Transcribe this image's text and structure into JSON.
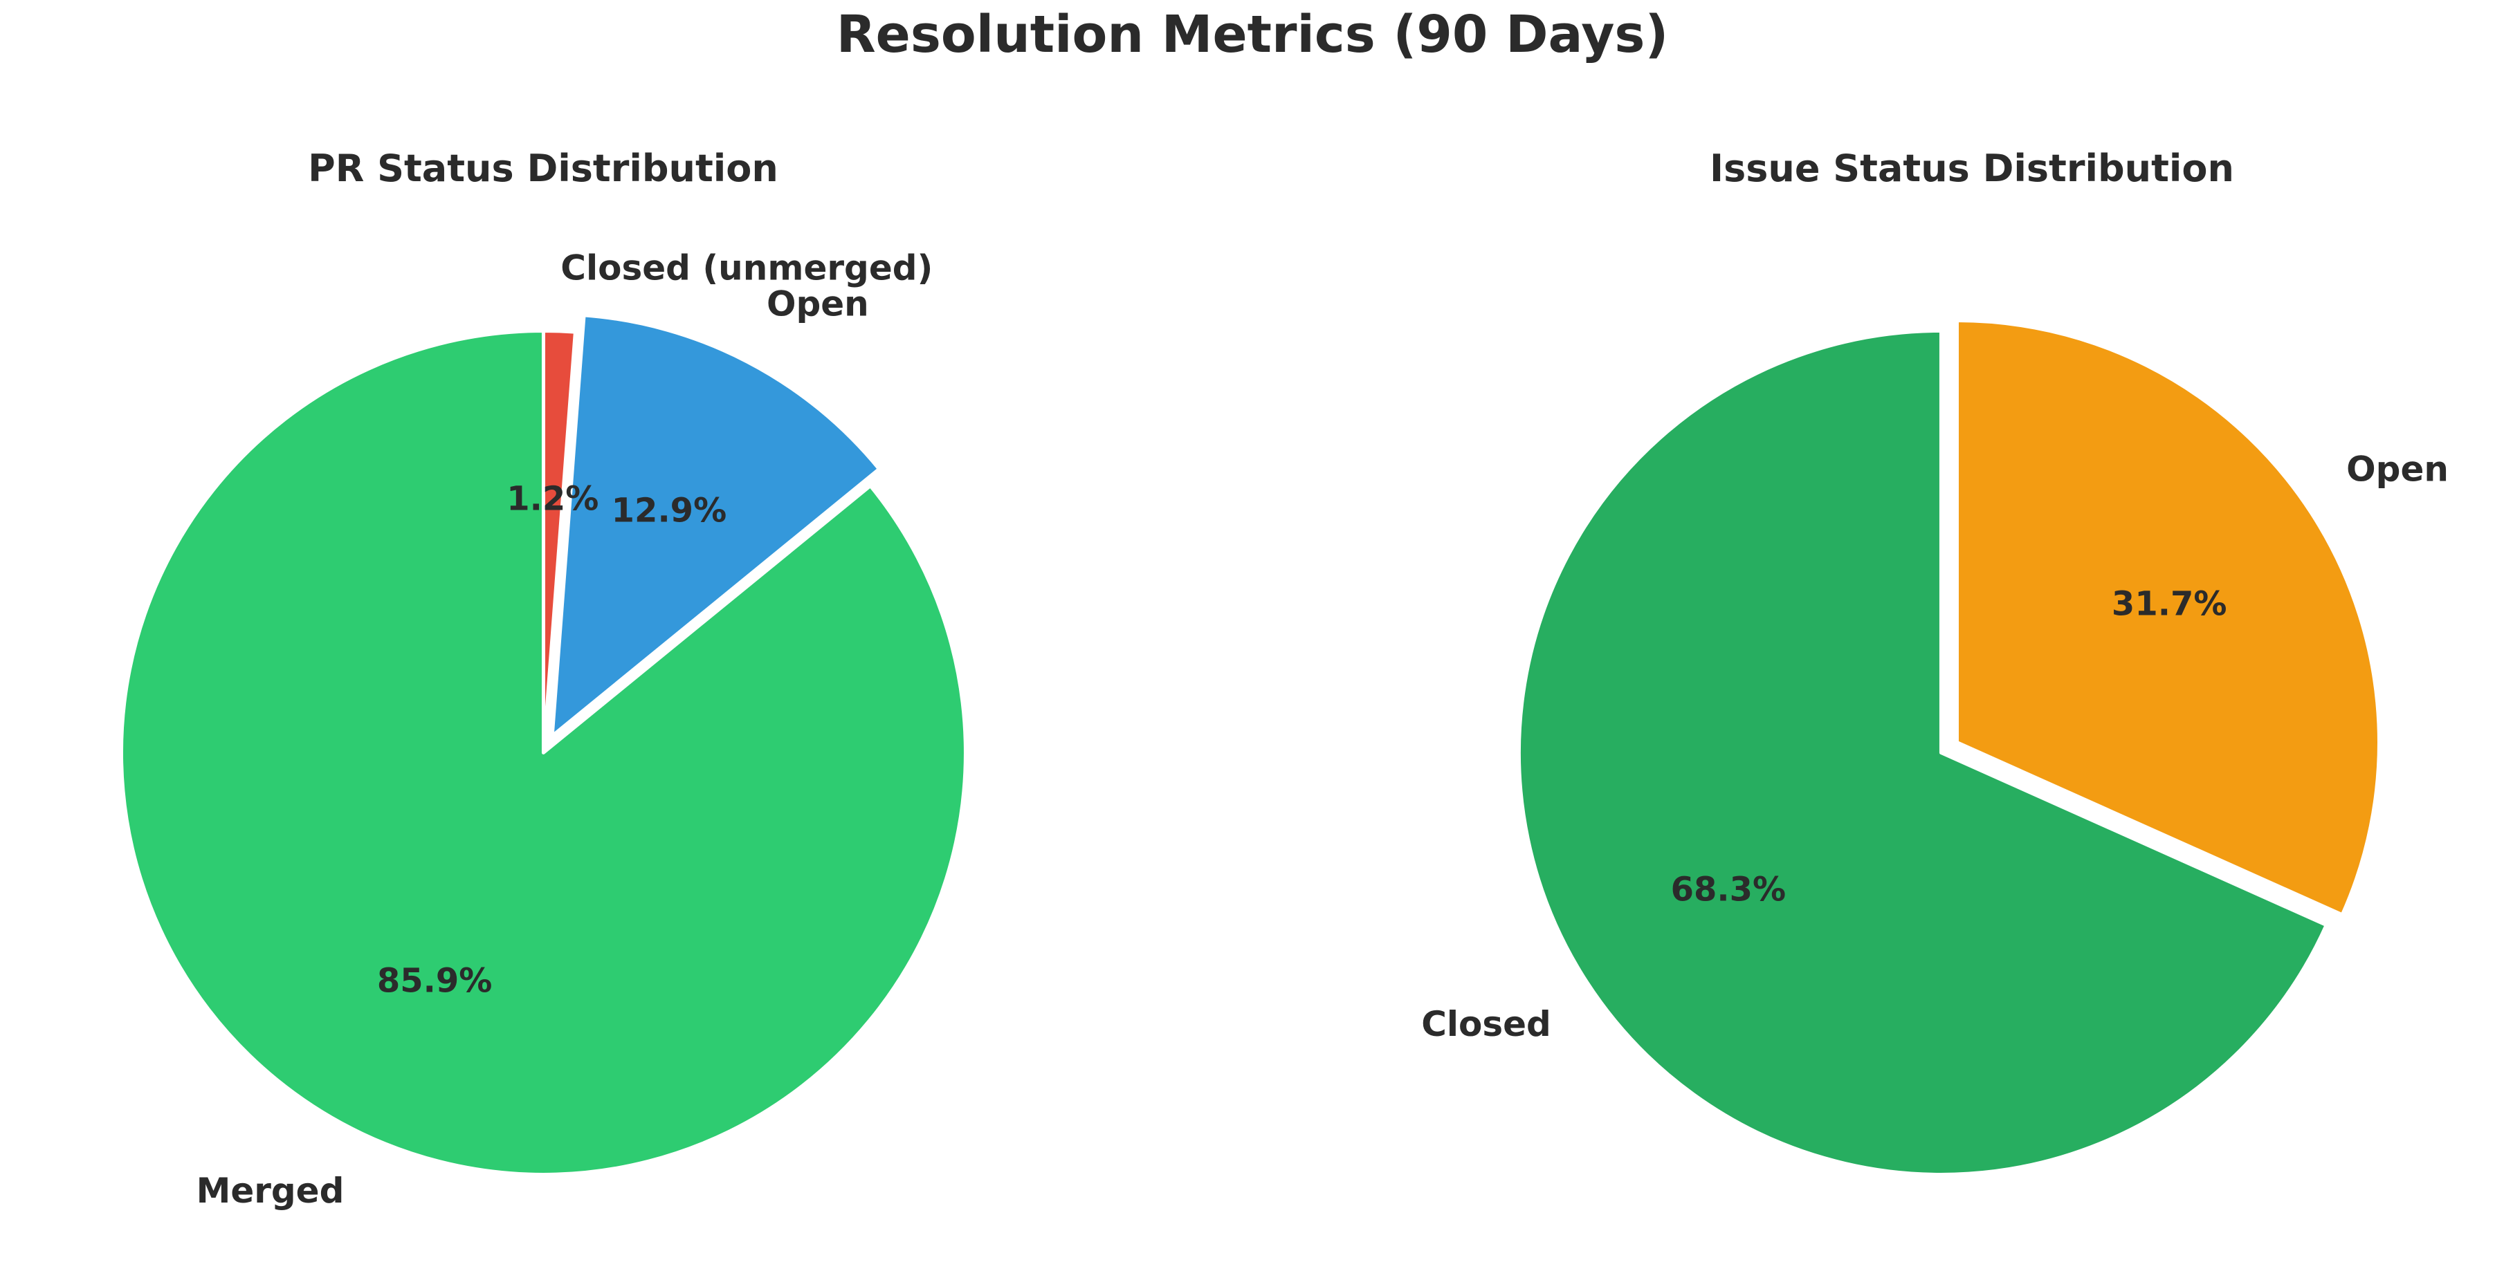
{
  "figure": {
    "title": "Resolution Metrics (90 Days)",
    "background_color": "#ffffff",
    "text_color": "#2b2b2b"
  },
  "chart_data": [
    {
      "type": "pie",
      "title": "PR Status Distribution",
      "units": "percent",
      "layout": {
        "start_angle": "12-o'clock",
        "direction": "clockwise",
        "labels_outside": true,
        "percent_labels_inside": true,
        "wedge_border_color": "#ffffff",
        "legend": "none"
      },
      "slices": [
        {
          "label": "Closed (unmerged)",
          "value": 1.2,
          "pct_label": "1.2%",
          "color": "#e74c3c",
          "pulled": false
        },
        {
          "label": "Open",
          "value": 12.9,
          "pct_label": "12.9%",
          "color": "#3498db",
          "pulled": true
        },
        {
          "label": "Merged",
          "value": 85.9,
          "pct_label": "85.9%",
          "color": "#2ecc71",
          "pulled": false
        }
      ]
    },
    {
      "type": "pie",
      "title": "Issue Status Distribution",
      "units": "percent",
      "layout": {
        "start_angle": "12-o'clock",
        "direction": "clockwise",
        "labels_outside": true,
        "percent_labels_inside": true,
        "wedge_border_color": "#ffffff",
        "legend": "none"
      },
      "slices": [
        {
          "label": "Open",
          "value": 31.7,
          "pct_label": "31.7%",
          "color": "#f39c12",
          "pulled": true
        },
        {
          "label": "Closed",
          "value": 68.3,
          "pct_label": "68.3%",
          "color": "#27ae60",
          "pulled": false
        }
      ]
    }
  ]
}
